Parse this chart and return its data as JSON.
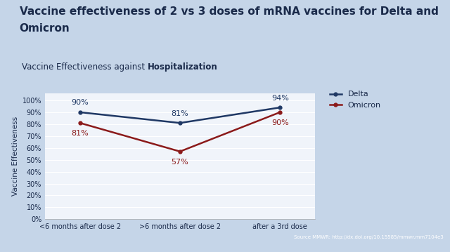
{
  "slide_title_line1": "Vaccine effectiveness of 2 vs 3 doses of mRNA vaccines for Delta and",
  "slide_title_line2": "Omicron",
  "chart_title_normal": "Vaccine Effectiveness against ",
  "chart_title_bold": "Hospitalization",
  "xlabel_categories": [
    "<6 months after dose 2",
    ">6 months after dose 2",
    "after a 3rd dose"
  ],
  "delta_values": [
    90,
    81,
    94
  ],
  "omicron_values": [
    81,
    57,
    90
  ],
  "delta_label": "Delta",
  "omicron_label": "Omicron",
  "delta_color": "#1f3864",
  "omicron_color": "#8b1a1a",
  "ylabel": "Vaccine Effectiveness",
  "yticks": [
    0,
    10,
    20,
    30,
    40,
    50,
    60,
    70,
    80,
    90,
    100
  ],
  "ylim": [
    0,
    106
  ],
  "card_bg": "#f0f4fa",
  "outer_bg": "#c5d5e8",
  "footer_bg": "#1a2a4a",
  "source_text": "Source MMWR: http://dx.doi.org/10.15585/mmwr.mm7104e3",
  "title_color": "#1a2a4a",
  "slide_title_fontsize": 11,
  "chart_title_fontsize": 8.5,
  "axis_fontsize": 7,
  "annotation_fontsize": 8,
  "ylabel_fontsize": 7.5,
  "legend_fontsize": 8
}
